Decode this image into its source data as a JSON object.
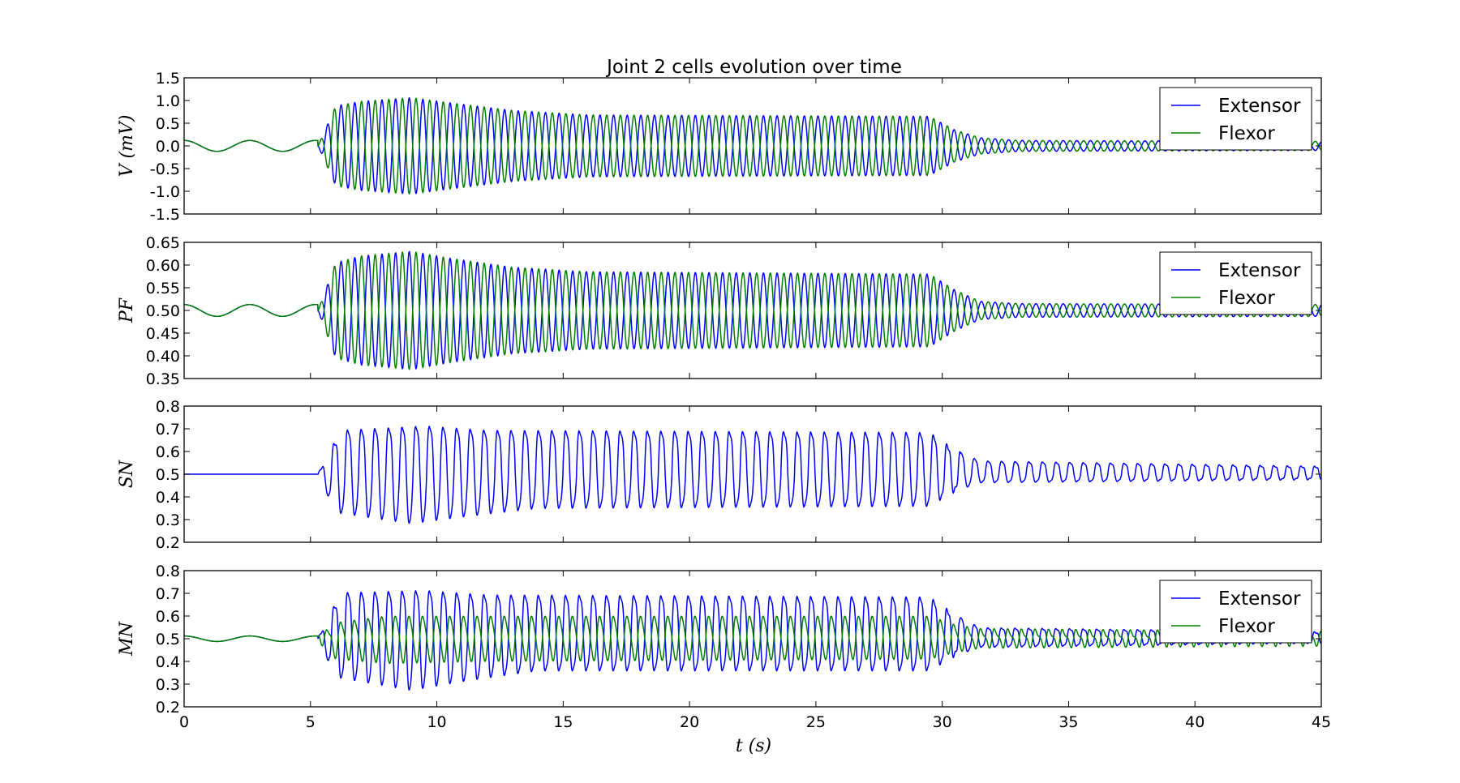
{
  "chart_data": {
    "type": "line",
    "title": "Joint 2 cells evolution over time",
    "xlabel": "t (s)",
    "xlim": [
      0,
      45
    ],
    "xticks": [
      0,
      5,
      10,
      15,
      20,
      25,
      30,
      35,
      40,
      45
    ],
    "colors": {
      "Extensor": "#0000ff",
      "Flexor": "#008000"
    },
    "panels": [
      {
        "id": "V",
        "ylabel": "V (mV)",
        "ylim": [
          -1.5,
          1.5
        ],
        "yticks": [
          "-1.5",
          "-1.0",
          "-0.5",
          "0.0",
          "0.5",
          "1.0",
          "1.5"
        ],
        "legend": [
          "Extensor",
          "Flexor"
        ],
        "legend_loc": "top-right",
        "series": [
          {
            "name": "Extensor",
            "model": "antiphase",
            "base": 0.0,
            "pre_amp": 0.12,
            "envelope": [
              [
                5.3,
                0.0
              ],
              [
                6.0,
                0.88
              ],
              [
                7.0,
                0.98
              ],
              [
                9.0,
                1.06
              ],
              [
                10.5,
                0.95
              ],
              [
                13.0,
                0.78
              ],
              [
                16.0,
                0.68
              ],
              [
                29.5,
                0.65
              ],
              [
                30.5,
                0.35
              ],
              [
                31.5,
                0.18
              ],
              [
                33.0,
                0.12
              ],
              [
                45.0,
                0.1
              ]
            ],
            "sign": -1
          },
          {
            "name": "Flexor",
            "model": "antiphase",
            "base": 0.0,
            "pre_amp": 0.12,
            "envelope": [
              [
                5.3,
                0.0
              ],
              [
                6.0,
                0.88
              ],
              [
                7.0,
                0.98
              ],
              [
                9.0,
                1.06
              ],
              [
                10.5,
                0.95
              ],
              [
                13.0,
                0.78
              ],
              [
                16.0,
                0.68
              ],
              [
                29.5,
                0.65
              ],
              [
                30.5,
                0.35
              ],
              [
                31.5,
                0.18
              ],
              [
                33.0,
                0.12
              ],
              [
                45.0,
                0.1
              ]
            ],
            "sign": 1
          }
        ]
      },
      {
        "id": "PF",
        "ylabel": "PF",
        "ylim": [
          0.35,
          0.65
        ],
        "yticks": [
          "0.35",
          "0.40",
          "0.45",
          "0.50",
          "0.55",
          "0.60",
          "0.65"
        ],
        "legend": [
          "Extensor",
          "Flexor"
        ],
        "legend_loc": "top-right",
        "series": [
          {
            "name": "Extensor",
            "model": "antiphase",
            "base": 0.5,
            "pre_amp": 0.013,
            "envelope": [
              [
                5.3,
                0.0
              ],
              [
                6.0,
                0.105
              ],
              [
                7.0,
                0.12
              ],
              [
                9.0,
                0.13
              ],
              [
                10.5,
                0.115
              ],
              [
                13.0,
                0.095
              ],
              [
                16.0,
                0.085
              ],
              [
                29.5,
                0.08
              ],
              [
                30.5,
                0.045
              ],
              [
                31.5,
                0.02
              ],
              [
                33.0,
                0.015
              ],
              [
                45.0,
                0.013
              ]
            ],
            "sign": -1
          },
          {
            "name": "Flexor",
            "model": "antiphase",
            "base": 0.5,
            "pre_amp": 0.013,
            "envelope": [
              [
                5.3,
                0.0
              ],
              [
                6.0,
                0.105
              ],
              [
                7.0,
                0.12
              ],
              [
                9.0,
                0.13
              ],
              [
                10.5,
                0.115
              ],
              [
                13.0,
                0.095
              ],
              [
                16.0,
                0.085
              ],
              [
                29.5,
                0.08
              ],
              [
                30.5,
                0.045
              ],
              [
                31.5,
                0.02
              ],
              [
                33.0,
                0.015
              ],
              [
                45.0,
                0.013
              ]
            ],
            "sign": 1
          }
        ]
      },
      {
        "id": "SN",
        "ylabel": "SN",
        "ylim": [
          0.2,
          0.8
        ],
        "yticks": [
          "0.2",
          "0.3",
          "0.4",
          "0.5",
          "0.6",
          "0.7",
          "0.8"
        ],
        "legend": [],
        "series": [
          {
            "name": "Extensor",
            "model": "spiky",
            "base": 0.5,
            "hi_env": [
              [
                5.3,
                0.0
              ],
              [
                6.2,
                0.2
              ],
              [
                9.5,
                0.22
              ],
              [
                12.0,
                0.2
              ],
              [
                29.5,
                0.19
              ],
              [
                30.5,
                0.11
              ],
              [
                31.5,
                0.06
              ],
              [
                45.0,
                0.035
              ]
            ],
            "lo_env": [
              [
                5.3,
                0.0
              ],
              [
                6.0,
                0.18
              ],
              [
                9.0,
                0.23
              ],
              [
                11.0,
                0.2
              ],
              [
                14.0,
                0.16
              ],
              [
                29.5,
                0.15
              ],
              [
                30.5,
                0.08
              ],
              [
                31.5,
                0.04
              ],
              [
                45.0,
                0.025
              ]
            ],
            "flat_before": 5.2
          }
        ]
      },
      {
        "id": "MN",
        "ylabel": "MN",
        "ylim": [
          0.2,
          0.8
        ],
        "yticks": [
          "0.2",
          "0.3",
          "0.4",
          "0.5",
          "0.6",
          "0.7",
          "0.8"
        ],
        "legend": [
          "Extensor",
          "Flexor"
        ],
        "legend_loc": "top-right",
        "series": [
          {
            "name": "Extensor",
            "model": "spiky",
            "base": 0.5,
            "pre_amp": 0.012,
            "hi_env": [
              [
                5.3,
                0.0
              ],
              [
                6.2,
                0.21
              ],
              [
                9.5,
                0.22
              ],
              [
                12.0,
                0.2
              ],
              [
                29.5,
                0.19
              ],
              [
                30.5,
                0.11
              ],
              [
                31.5,
                0.05
              ],
              [
                45.0,
                0.03
              ]
            ],
            "lo_env": [
              [
                5.3,
                0.0
              ],
              [
                6.0,
                0.18
              ],
              [
                9.0,
                0.24
              ],
              [
                11.0,
                0.2
              ],
              [
                14.0,
                0.15
              ],
              [
                29.5,
                0.15
              ],
              [
                30.5,
                0.08
              ],
              [
                31.5,
                0.04
              ],
              [
                45.0,
                0.02
              ]
            ]
          },
          {
            "name": "Flexor",
            "model": "flexor_mn",
            "base": 0.5,
            "pre_amp": 0.012,
            "hi_env": [
              [
                5.3,
                0.0
              ],
              [
                6.0,
                0.07
              ],
              [
                8.0,
                0.1
              ],
              [
                29.5,
                0.1
              ],
              [
                30.5,
                0.06
              ],
              [
                31.5,
                0.04
              ],
              [
                45.0,
                0.025
              ]
            ],
            "lo_env": [
              [
                5.3,
                0.0
              ],
              [
                6.0,
                0.08
              ],
              [
                8.0,
                0.1
              ],
              [
                12.0,
                0.09
              ],
              [
                29.5,
                0.08
              ],
              [
                30.5,
                0.05
              ],
              [
                31.5,
                0.03
              ],
              [
                45.0,
                0.02
              ]
            ]
          }
        ]
      }
    ]
  }
}
